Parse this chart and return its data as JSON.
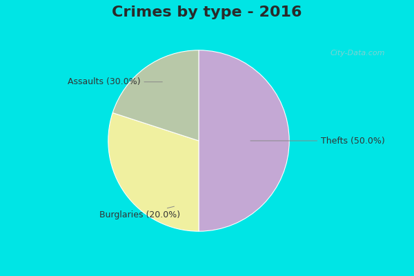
{
  "title": "Crimes by type - 2016",
  "slices": [
    {
      "label": "Thefts (50.0%)",
      "value": 50.0,
      "color": "#C4A8D4"
    },
    {
      "label": "Assaults (30.0%)",
      "value": 30.0,
      "color": "#F0F0A0"
    },
    {
      "label": "Burglaries (20.0%)",
      "value": 20.0,
      "color": "#B8C8A8"
    }
  ],
  "background_color_top": "#00E5E5",
  "background_color_main": "#D0EDD8",
  "title_fontsize": 16,
  "label_fontsize": 9,
  "watermark": "City-Data.com",
  "start_angle": 90,
  "title_color": "#2A2A2A"
}
